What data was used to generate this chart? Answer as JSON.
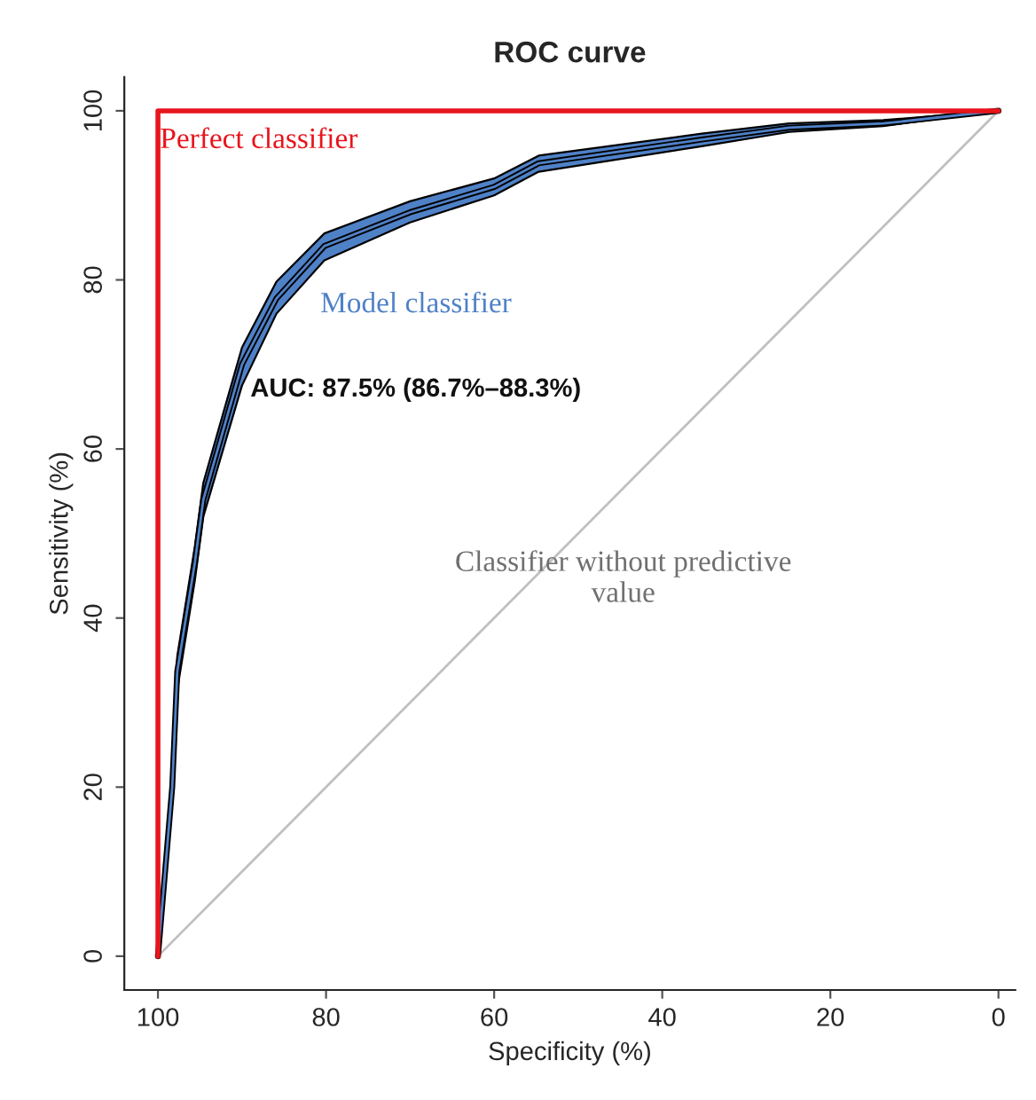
{
  "chart_data": {
    "type": "line",
    "title": "ROC curve",
    "xlabel": "Specificity (%)",
    "ylabel": "Sensitivity (%)",
    "xlim": [
      104,
      -2
    ],
    "ylim": [
      -4,
      104
    ],
    "xticks": [
      100,
      80,
      60,
      40,
      20,
      0
    ],
    "yticks": [
      0,
      20,
      40,
      60,
      80,
      100
    ],
    "grid": false,
    "legend": false,
    "series": [
      {
        "name": "Perfect classifier",
        "color": "#e8141c",
        "x": [
          100,
          100,
          0
        ],
        "values": [
          0,
          100,
          100
        ]
      },
      {
        "name": "Model classifier",
        "color": "#4f81c7",
        "x": [
          100,
          98.3,
          97.7,
          95.6,
          94.6,
          90,
          85.9,
          80.2,
          70,
          60,
          54.7,
          35.3,
          24.9,
          13.7,
          0
        ],
        "values": [
          0,
          20,
          33.7,
          46.6,
          54,
          70,
          77.8,
          84,
          88,
          91,
          93.8,
          96.6,
          98,
          98.5,
          100
        ],
        "lower": [
          0,
          18.5,
          31.5,
          44.5,
          52,
          67.5,
          76,
          82.3,
          86.8,
          90,
          92.8,
          95.8,
          97.5,
          98.2,
          100
        ],
        "upper": [
          0,
          21.5,
          35.5,
          48.5,
          56,
          72,
          79.8,
          85.5,
          89.3,
          92,
          94.7,
          97.3,
          98.5,
          98.9,
          100
        ]
      },
      {
        "name": "Classifier without predictive value",
        "color": "#c0c0c0",
        "x": [
          100,
          0
        ],
        "values": [
          0,
          100
        ]
      }
    ],
    "annotations": [
      {
        "text": "AUC: 87.5% (86.7%–88.3%)",
        "x": 89,
        "y": 67
      }
    ]
  }
}
